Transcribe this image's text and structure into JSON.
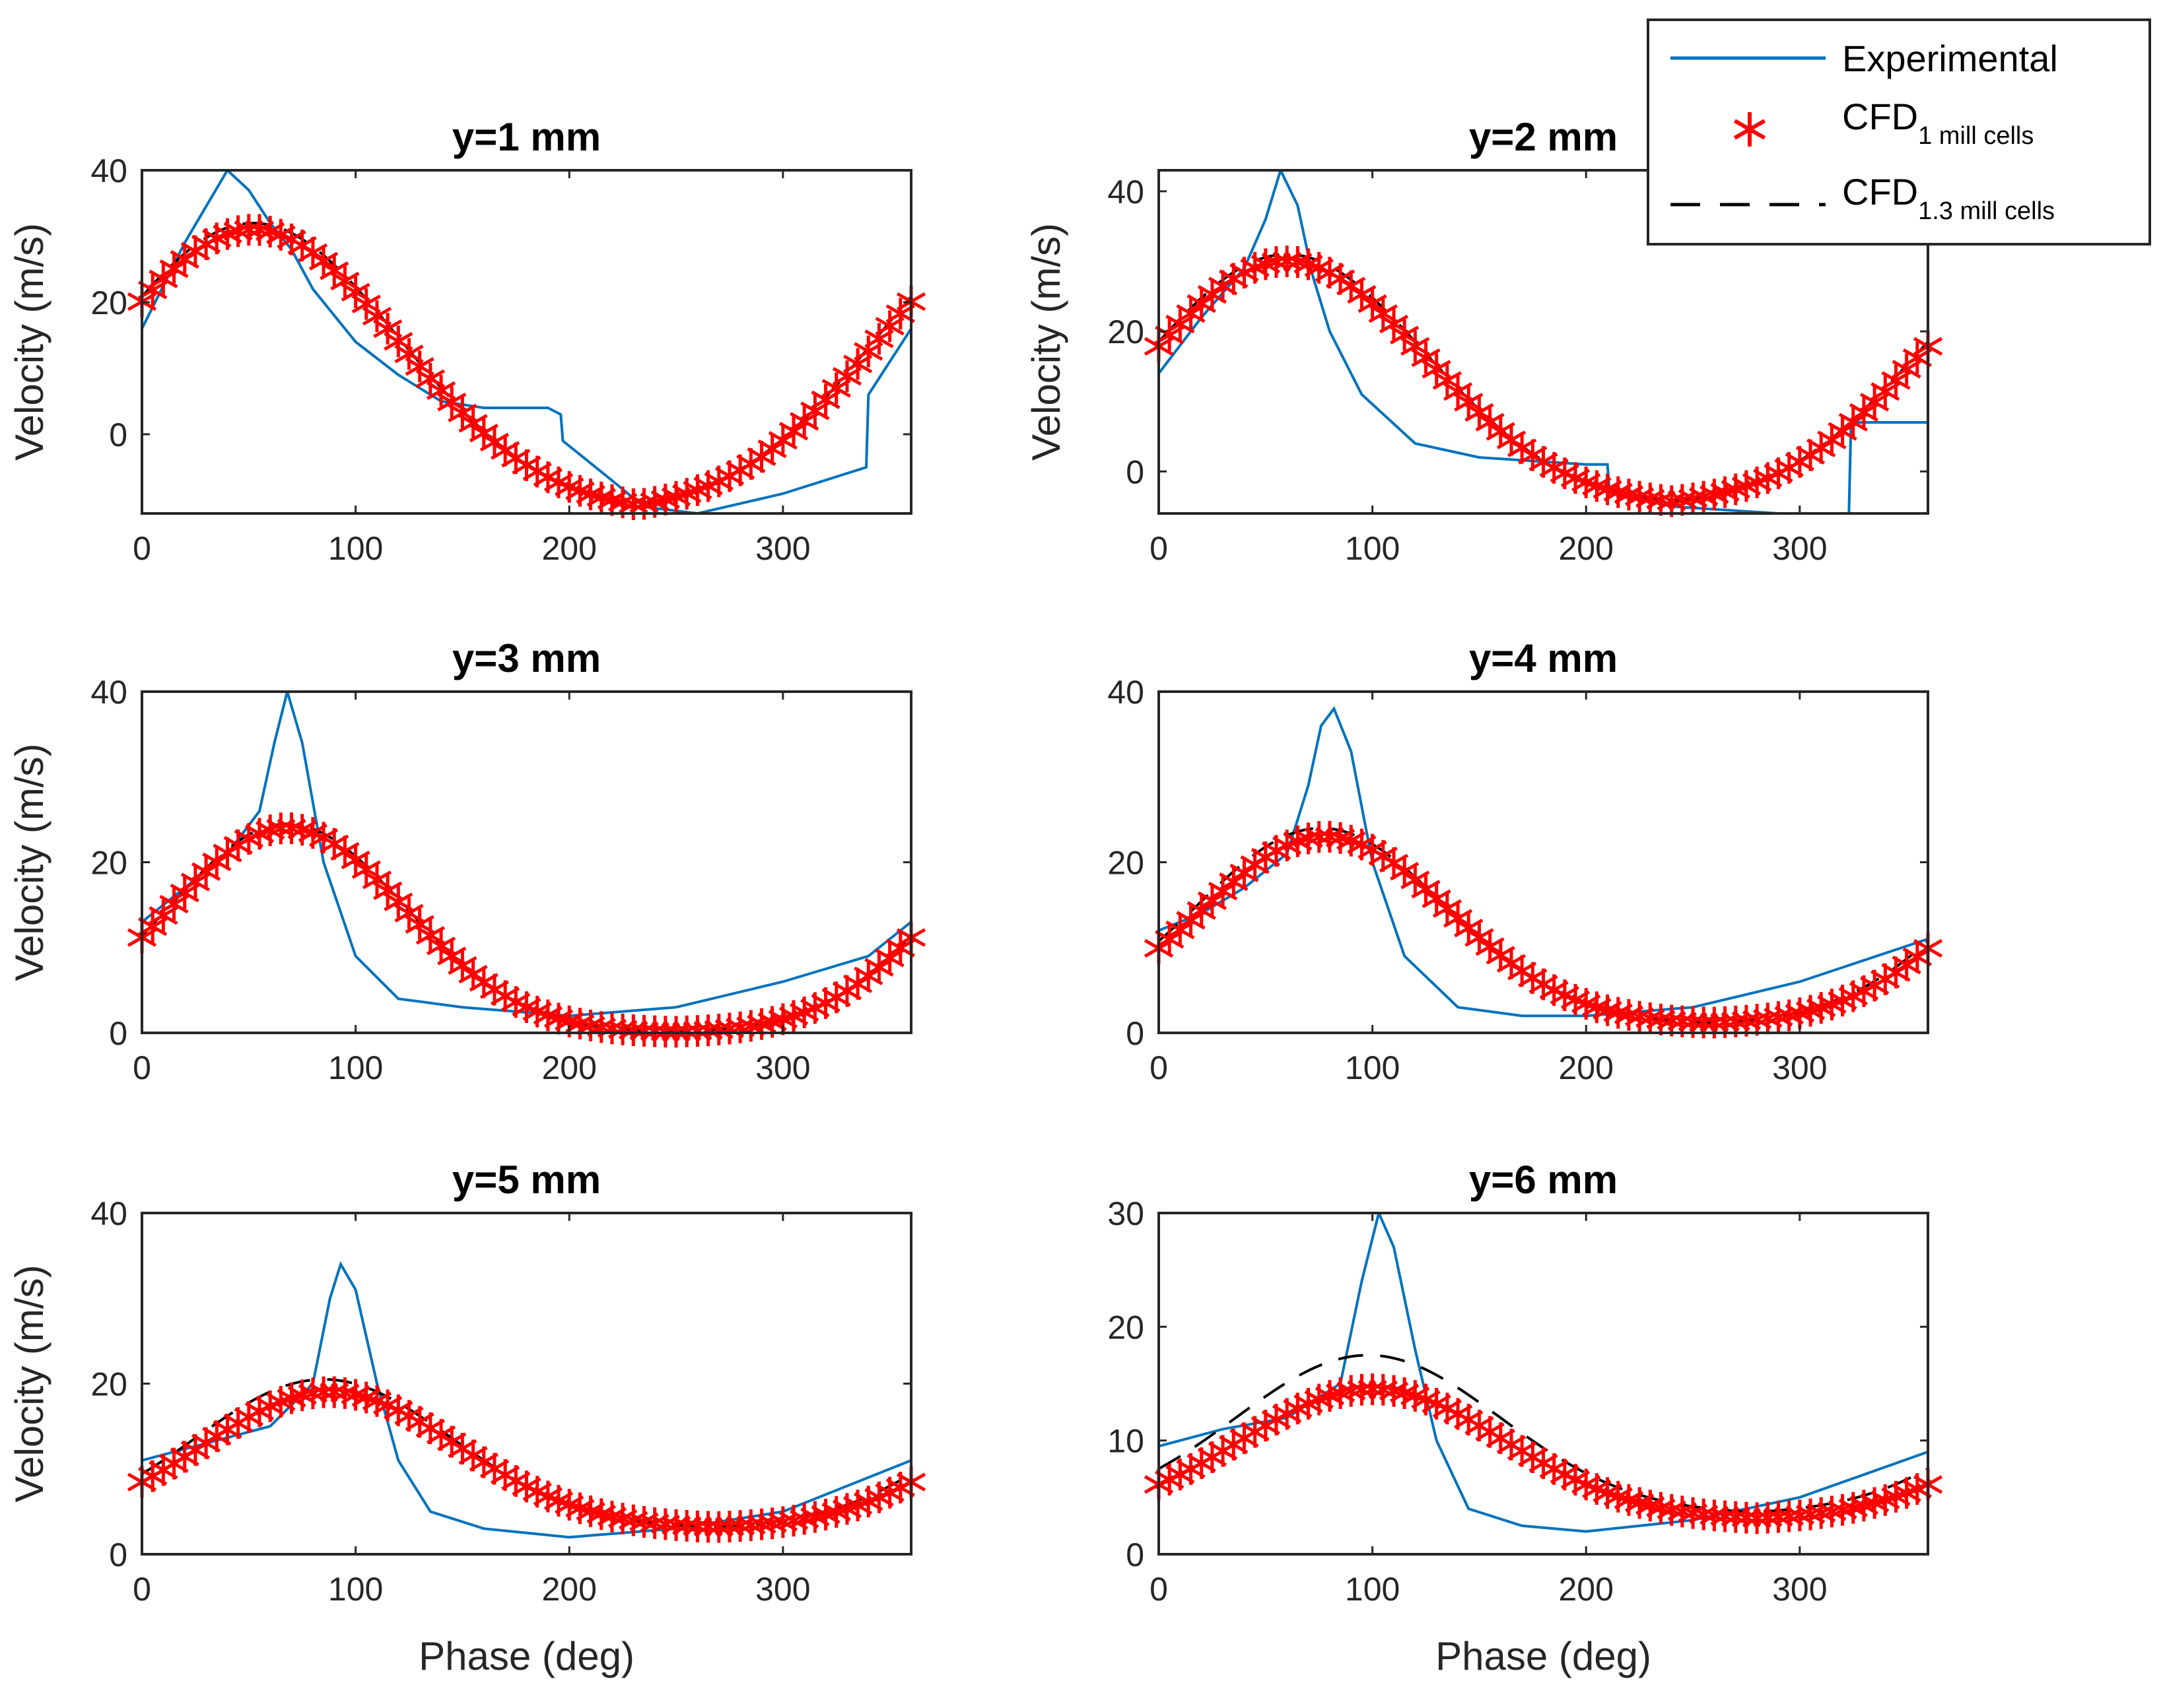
{
  "chart_data": [
    {
      "type": "line",
      "title": "y=1 mm",
      "xlabel": "",
      "ylabel": "Velocity (m/s)",
      "xlim": [
        0,
        360
      ],
      "ylim": [
        -12,
        40
      ],
      "xticks": [
        0,
        100,
        200,
        300
      ],
      "yticks": [
        0,
        20,
        40
      ],
      "series": [
        {
          "name": "Experimental",
          "x": [
            0,
            20,
            40,
            50,
            60,
            70,
            80,
            100,
            120,
            140,
            160,
            190,
            196,
            197,
            220,
            235,
            260,
            300,
            339,
            340,
            360
          ],
          "y": [
            16,
            29,
            40,
            37,
            32,
            28,
            22,
            14,
            9,
            5,
            4,
            4,
            3,
            -1,
            -7,
            -11,
            -12,
            -9,
            -5,
            6,
            16
          ]
        },
        {
          "name": "CFD 1 mill cells",
          "cfd": {
            "base": -12,
            "amp": 43,
            "mu": 52,
            "sig": 68,
            "period": 360
          }
        },
        {
          "name": "CFD 1.3 mill cells",
          "cfd": {
            "base": -12,
            "amp": 44,
            "mu": 52,
            "sig": 68,
            "period": 360
          }
        }
      ]
    },
    {
      "type": "line",
      "title": "y=2 mm",
      "xlabel": "",
      "ylabel": "Velocity (m/s)",
      "xlim": [
        0,
        360
      ],
      "ylim": [
        -6,
        43
      ],
      "xticks": [
        0,
        100,
        200,
        300
      ],
      "yticks": [
        0,
        20,
        40
      ],
      "series": [
        {
          "name": "Experimental",
          "x": [
            0,
            20,
            40,
            50,
            57,
            65,
            72,
            80,
            95,
            120,
            150,
            200,
            210,
            211,
            240,
            290,
            323,
            324,
            360
          ],
          "y": [
            14,
            22,
            29,
            36,
            43,
            38,
            28,
            20,
            11,
            4,
            2,
            1,
            1,
            -3,
            -5,
            -6,
            -6,
            7,
            7
          ]
        },
        {
          "name": "CFD 1 mill cells",
          "cfd": {
            "base": -5,
            "amp": 35,
            "mu": 60,
            "sig": 65,
            "period": 360
          }
        },
        {
          "name": "CFD 1.3 mill cells",
          "cfd": {
            "base": -5,
            "amp": 36,
            "mu": 60,
            "sig": 65,
            "period": 360
          }
        }
      ]
    },
    {
      "type": "line",
      "title": "y=3 mm",
      "xlabel": "",
      "ylabel": "Velocity (m/s)",
      "xlim": [
        0,
        360
      ],
      "ylim": [
        0,
        40
      ],
      "xticks": [
        0,
        100,
        200,
        300
      ],
      "yticks": [
        0,
        20,
        40
      ],
      "series": [
        {
          "name": "Experimental",
          "x": [
            0,
            20,
            40,
            55,
            62,
            68,
            75,
            85,
            100,
            120,
            150,
            200,
            250,
            300,
            340,
            360
          ],
          "y": [
            13,
            17,
            21,
            26,
            34,
            40,
            34,
            20,
            9,
            4,
            3,
            2,
            3,
            6,
            9,
            13
          ]
        },
        {
          "name": "CFD 1 mill cells",
          "cfd": {
            "base": 0,
            "amp": 24,
            "mu": 68,
            "sig": 55,
            "period": 360
          }
        },
        {
          "name": "CFD 1.3 mill cells",
          "cfd": {
            "base": 0,
            "amp": 24.5,
            "mu": 68,
            "sig": 55,
            "period": 360
          }
        }
      ]
    },
    {
      "type": "line",
      "title": "y=4 mm",
      "xlabel": "",
      "ylabel": "",
      "xlim": [
        0,
        360
      ],
      "ylim": [
        0,
        40
      ],
      "xticks": [
        0,
        100,
        200,
        300
      ],
      "yticks": [
        0,
        20,
        40
      ],
      "series": [
        {
          "name": "Experimental",
          "x": [
            0,
            20,
            40,
            60,
            70,
            76,
            82,
            90,
            100,
            115,
            140,
            170,
            200,
            250,
            300,
            360
          ],
          "y": [
            12,
            14,
            17,
            21,
            29,
            36,
            38,
            33,
            20,
            9,
            3,
            2,
            2,
            3,
            6,
            11
          ]
        },
        {
          "name": "CFD 1 mill cells",
          "cfd": {
            "base": 1,
            "amp": 22,
            "mu": 78,
            "sig": 58,
            "period": 360
          }
        },
        {
          "name": "CFD 1.3 mill cells",
          "cfd": {
            "base": 1,
            "amp": 23,
            "mu": 76,
            "sig": 58,
            "period": 360
          }
        }
      ]
    },
    {
      "type": "line",
      "title": "y=5 mm",
      "xlabel": "Phase (deg)",
      "ylabel": "Velocity (m/s)",
      "xlim": [
        0,
        360
      ],
      "ylim": [
        0,
        40
      ],
      "xticks": [
        0,
        100,
        200,
        300
      ],
      "yticks": [
        0,
        20,
        40
      ],
      "series": [
        {
          "name": "Experimental",
          "x": [
            0,
            30,
            60,
            80,
            88,
            93,
            100,
            110,
            120,
            135,
            160,
            200,
            250,
            300,
            360
          ],
          "y": [
            11,
            13,
            15,
            20,
            30,
            34,
            31,
            20,
            11,
            5,
            3,
            2,
            3,
            5,
            11
          ]
        },
        {
          "name": "CFD 1 mill cells",
          "cfd": {
            "base": 3,
            "amp": 16,
            "mu": 88,
            "sig": 60,
            "period": 360
          }
        },
        {
          "name": "CFD 1.3 mill cells",
          "cfd": {
            "base": 3,
            "amp": 17.5,
            "mu": 85,
            "sig": 60,
            "period": 360
          }
        }
      ]
    },
    {
      "type": "line",
      "title": "y=6 mm",
      "xlabel": "Phase (deg)",
      "ylabel": "",
      "xlim": [
        0,
        360
      ],
      "ylim": [
        0,
        30
      ],
      "xticks": [
        0,
        100,
        200,
        300
      ],
      "yticks": [
        0,
        10,
        20,
        30
      ],
      "series": [
        {
          "name": "Experimental",
          "x": [
            0,
            30,
            60,
            85,
            95,
            103,
            110,
            120,
            130,
            145,
            170,
            200,
            250,
            300,
            360
          ],
          "y": [
            9.5,
            11,
            12,
            15,
            24,
            30,
            27,
            18,
            10,
            4,
            2.5,
            2,
            3,
            5,
            9
          ]
        },
        {
          "name": "CFD 1 mill cells",
          "cfd": {
            "base": 3,
            "amp": 11.5,
            "mu": 100,
            "sig": 62,
            "period": 360
          }
        },
        {
          "name": "CFD 1.3 mill cells",
          "cfd": {
            "base": 3.5,
            "amp": 14,
            "mu": 98,
            "sig": 62,
            "period": 360
          }
        }
      ]
    }
  ],
  "legend": {
    "placement": "top-right",
    "items": [
      {
        "label": "Experimental",
        "sub": ""
      },
      {
        "label": "CFD",
        "sub": "1 mill cells"
      },
      {
        "label": "CFD",
        "sub": "1.3 mill cells"
      }
    ]
  },
  "colors": {
    "experimental": "#0072BD",
    "cfd_coarse": "#FF0000",
    "cfd_fine": "#000000"
  }
}
